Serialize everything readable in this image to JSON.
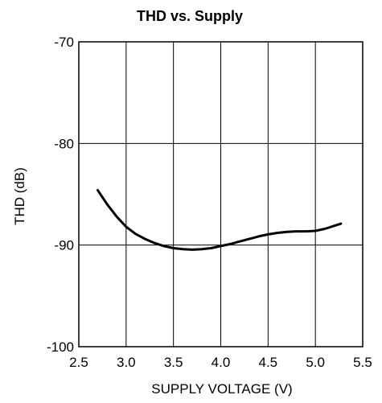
{
  "chart_data": {
    "type": "line",
    "title": "THD vs. Supply",
    "xlabel": "SUPPLY VOLTAGE (V)",
    "ylabel": "THD (dB)",
    "xlim": [
      2.5,
      5.5
    ],
    "ylim": [
      -100,
      -70
    ],
    "xticks": [
      2.5,
      3.0,
      3.5,
      4.0,
      4.5,
      5.0,
      5.5
    ],
    "xtick_labels": [
      "2.5",
      "3.0",
      "3.5",
      "4.0",
      "4.5",
      "5.0",
      "5.5"
    ],
    "yticks": [
      -100,
      -90,
      -80,
      -70
    ],
    "ytick_labels": [
      "-100",
      "-90",
      "-80",
      "-70"
    ],
    "grid": true,
    "legend": "none",
    "colors": {
      "line": "#000000",
      "grid": "#000000",
      "background": "#ffffff"
    },
    "series": [
      {
        "x": [
          2.7,
          2.8,
          2.9,
          3.0,
          3.1,
          3.2,
          3.3,
          3.4,
          3.5,
          3.6,
          3.7,
          3.8,
          3.9,
          4.0,
          4.1,
          4.2,
          4.3,
          4.4,
          4.5,
          4.6,
          4.7,
          4.8,
          4.9,
          5.0,
          5.1,
          5.2,
          5.27
        ],
        "y": [
          -84.6,
          -86.0,
          -87.2,
          -88.2,
          -88.9,
          -89.4,
          -89.8,
          -90.1,
          -90.3,
          -90.4,
          -90.45,
          -90.4,
          -90.3,
          -90.1,
          -89.9,
          -89.65,
          -89.4,
          -89.15,
          -88.95,
          -88.8,
          -88.7,
          -88.65,
          -88.65,
          -88.6,
          -88.4,
          -88.1,
          -87.9
        ]
      }
    ]
  }
}
